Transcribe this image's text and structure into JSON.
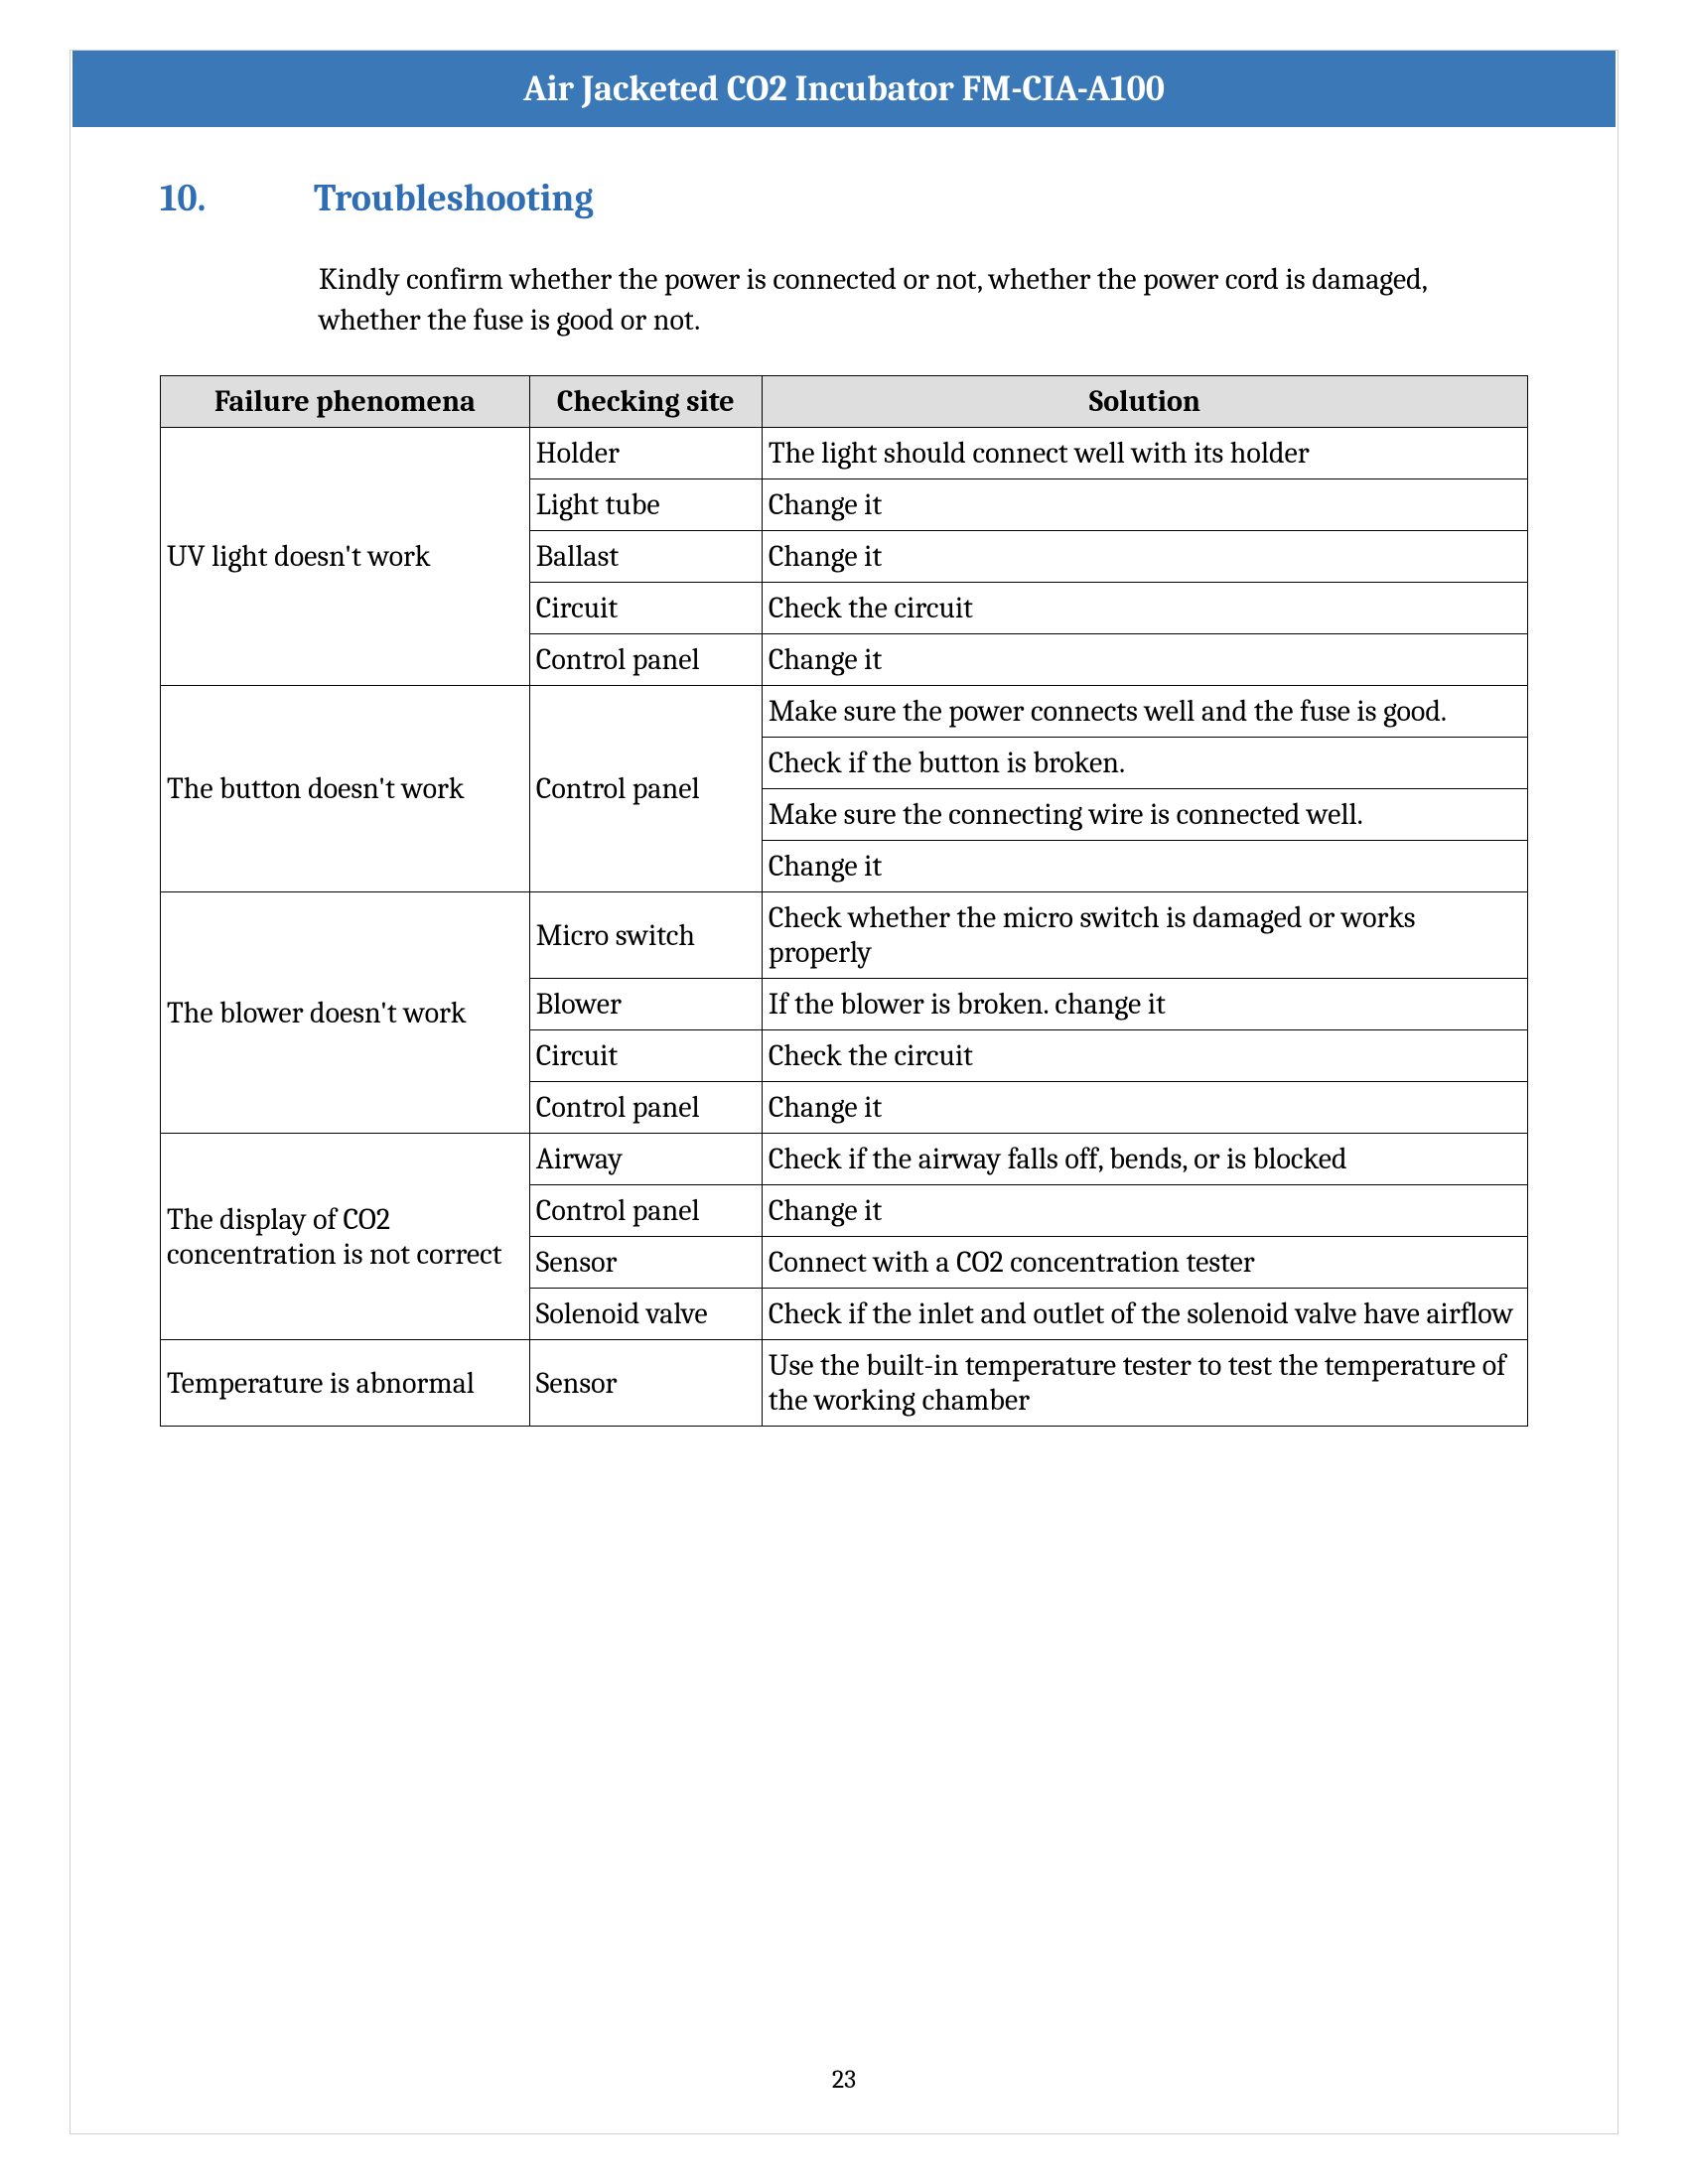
{
  "header": {
    "title": "Air Jacketed CO2 Incubator FM-CIA-A100"
  },
  "section": {
    "number": "10.",
    "title": "Troubleshooting",
    "intro": "Kindly confirm whether the power is connected or not, whether the power cord is damaged, whether the fuse is good or not."
  },
  "table": {
    "columns": [
      "Failure phenomena",
      "Checking site",
      "Solution"
    ],
    "groups": [
      {
        "failure": "UV light doesn't work",
        "rows": [
          {
            "checking": "Holder",
            "solution": "The light should connect well with its holder"
          },
          {
            "checking": "Light tube",
            "solution": "Change it"
          },
          {
            "checking": "Ballast",
            "solution": "Change it"
          },
          {
            "checking": "Circuit",
            "solution": "Check the circuit"
          },
          {
            "checking": "Control panel",
            "solution": "Change it"
          }
        ]
      },
      {
        "failure": "The button doesn't work",
        "rows": [
          {
            "checking": "Control panel",
            "checking_rowspan": 4,
            "solution": "Make sure the power connects well and the fuse is good."
          },
          {
            "solution": "Check if the button is broken."
          },
          {
            "solution": "Make sure the connecting wire is connected well."
          },
          {
            "solution": "Change it"
          }
        ]
      },
      {
        "failure": "The blower doesn't work",
        "rows": [
          {
            "checking": "Micro switch",
            "solution": "Check whether the micro switch is damaged or works properly"
          },
          {
            "checking": "Blower",
            "solution": "If the blower is broken. change it"
          },
          {
            "checking": "Circuit",
            "solution": "Check the circuit"
          },
          {
            "checking": "Control panel",
            "solution": "Change it"
          }
        ]
      },
      {
        "failure": "The display of CO2 concentration is not correct",
        "rows": [
          {
            "checking": "Airway",
            "solution": "Check if the airway falls off, bends, or is blocked"
          },
          {
            "checking": "Control panel",
            "solution": "Change it"
          },
          {
            "checking": "Sensor",
            "solution": "Connect with a CO2 concentration tester"
          },
          {
            "checking": "Solenoid valve",
            "solution": "Check if the inlet and outlet of the solenoid valve have airflow"
          }
        ]
      },
      {
        "failure": "Temperature is abnormal",
        "rows": [
          {
            "checking": "Sensor",
            "solution": "Use the built-in temperature tester to test the temperature of the working chamber",
            "solution_justify": true
          }
        ]
      }
    ]
  },
  "page_number": "23",
  "colors": {
    "header_bg": "#3b78b8",
    "header_text": "#ffffff",
    "heading_text": "#2f6eb5",
    "table_header_bg": "#dedede",
    "border": "#000000"
  }
}
